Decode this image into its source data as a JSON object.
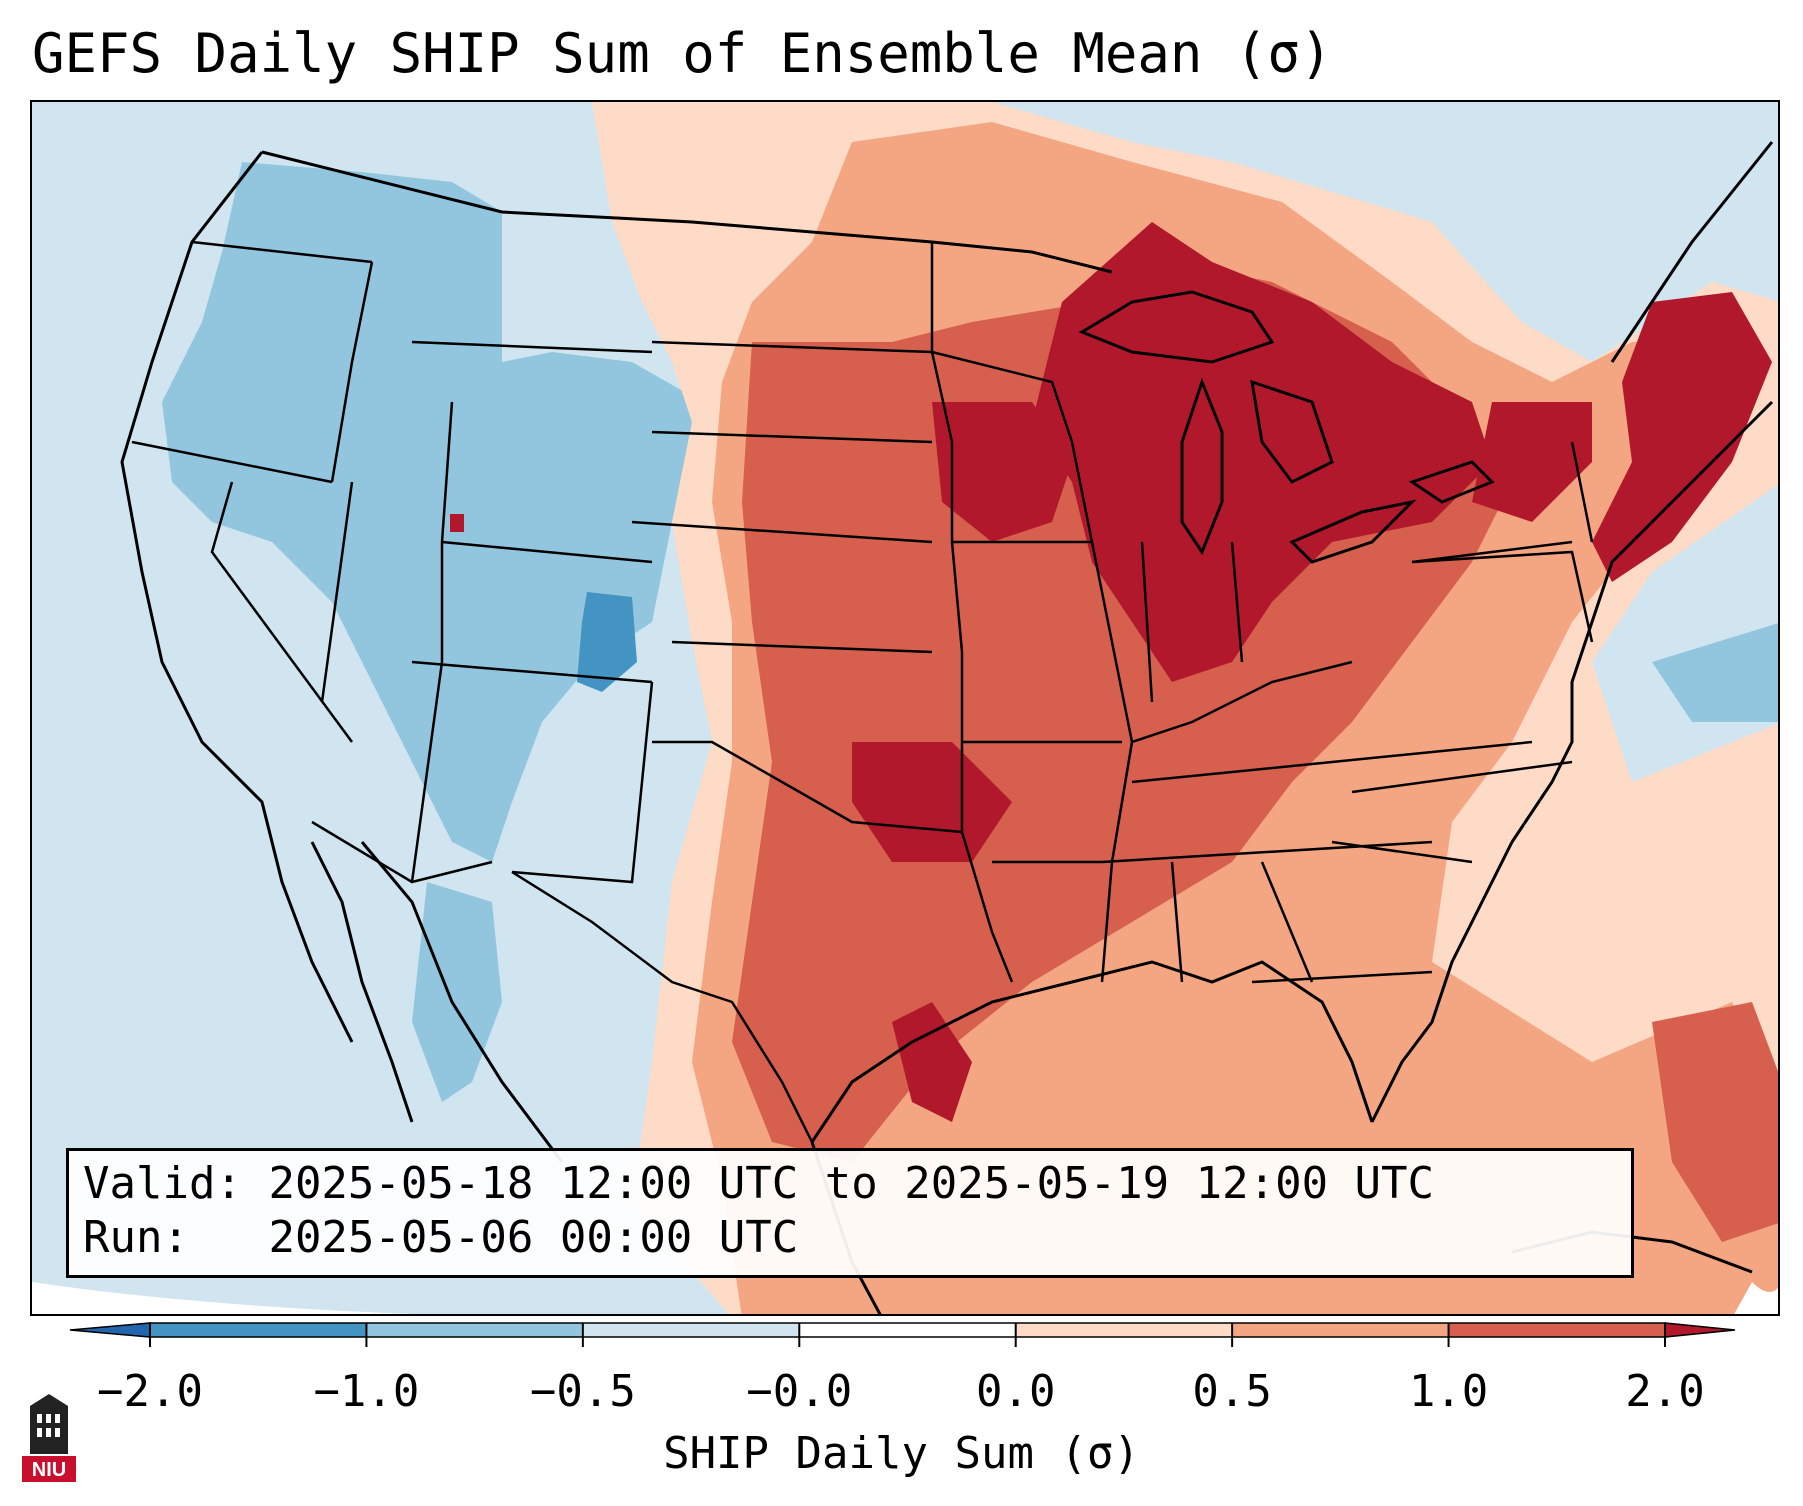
{
  "title": "GEFS Daily SHIP Sum of Ensemble Mean (σ)",
  "info": {
    "valid_label": "Valid:",
    "valid_value": "2025-05-18 12:00 UTC to 2025-05-19 12:00 UTC",
    "run_label": "Run:",
    "run_value": "2025-05-06 00:00 UTC"
  },
  "colorbar": {
    "label": "SHIP Daily Sum (σ)",
    "ticks": [
      "−2.0",
      "−1.0",
      "−0.5",
      "−0.0",
      "0.0",
      "0.5",
      "1.0",
      "2.0"
    ],
    "colors": [
      "#2166ac",
      "#4393c3",
      "#92c5de",
      "#d1e5f0",
      "#fddbc7",
      "#f4a582",
      "#d6604d",
      "#b2182b"
    ],
    "extend": "both"
  },
  "logo": {
    "text": "NIU",
    "color": "#c8102e"
  },
  "map_colors": {
    "ocean_default": "#d1e5f0",
    "region_dark_blue": "#4393c3",
    "region_blue": "#92c5de",
    "region_light_red": "#fddbc7",
    "region_salmon": "#f4a582",
    "region_red": "#d6604d",
    "region_dark_red": "#b2182b",
    "outline": "#000000"
  }
}
